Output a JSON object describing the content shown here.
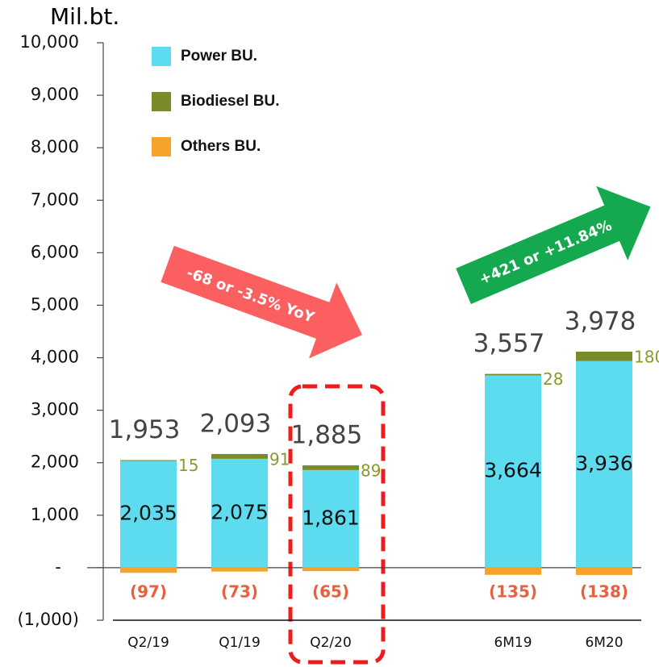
{
  "chart_data": {
    "type": "stacked-bar",
    "y_axis_label": "Mil.bt.",
    "categories": [
      "Q2/19",
      "Q1/19",
      "Q2/20",
      null,
      "6M19",
      "6M20"
    ],
    "series": [
      {
        "name": "Power BU.",
        "color": "#5ddcf0",
        "label_color": "#111111",
        "values": [
          2035,
          2075,
          1861,
          null,
          3664,
          3936
        ],
        "value_labels": [
          "2,035",
          "2,075",
          "1,861",
          null,
          "3,664",
          "3,936"
        ]
      },
      {
        "name": "Biodiesel BU.",
        "color": "#7a8c2a",
        "label_color": "#8a9a2a",
        "values": [
          15,
          91,
          89,
          null,
          28,
          180
        ]
      },
      {
        "name": "Others BU.",
        "color": "#f5a32a",
        "label_color": "#e8603c",
        "values": [
          -97,
          -73,
          -65,
          null,
          -135,
          -138
        ],
        "value_labels": [
          "(97)",
          "(73)",
          "(65)",
          null,
          "(135)",
          "(138)"
        ]
      }
    ],
    "totals": {
      "values": [
        1953,
        2093,
        1885,
        null,
        3557,
        3978
      ],
      "value_labels": [
        "1,953",
        "2,093",
        "1,885",
        null,
        "3,557",
        "3,978"
      ]
    },
    "ylim": [
      -1000,
      10000
    ],
    "yticks": [
      {
        "value": -1000,
        "label": "(1,000)"
      },
      {
        "value": 0,
        "label": "-"
      },
      {
        "value": 1000,
        "label": "1,000"
      },
      {
        "value": 2000,
        "label": "2,000"
      },
      {
        "value": 3000,
        "label": "3,000"
      },
      {
        "value": 4000,
        "label": "4,000"
      },
      {
        "value": 5000,
        "label": "5,000"
      },
      {
        "value": 6000,
        "label": "6,000"
      },
      {
        "value": 7000,
        "label": "7,000"
      },
      {
        "value": 8000,
        "label": "8,000"
      },
      {
        "value": 9000,
        "label": "9,000"
      },
      {
        "value": 10000,
        "label": "10,000"
      }
    ],
    "annotations": [
      "-68 or -3.5% YoY",
      "+421 or +11.84%"
    ]
  }
}
